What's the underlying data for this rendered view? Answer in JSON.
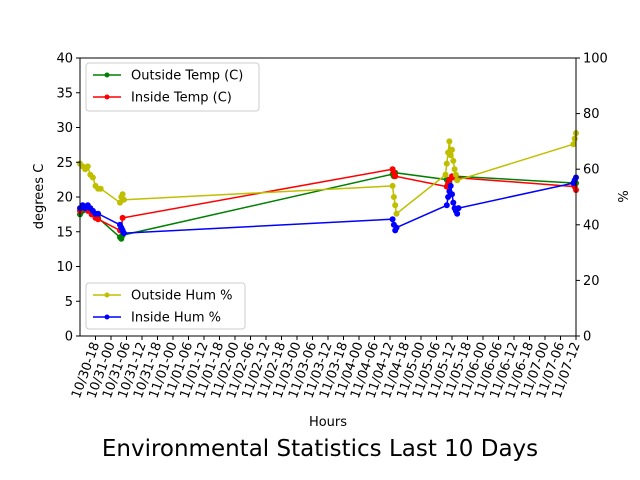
{
  "chart_data": {
    "type": "line",
    "title": "Environmental Statistics Last 10 Days",
    "xlabel": "Hours",
    "ylabel": "degrees C",
    "y2label": "%",
    "xlim": [
      "2018-10-30 12:00",
      "2018-11-07 12:00"
    ],
    "ylim": [
      0,
      40
    ],
    "y2lim": [
      0,
      100
    ],
    "x_tick_labels": [
      "10/30-18",
      "10/31-00",
      "10/31-06",
      "10/31-12",
      "10/31-18",
      "11/01-00",
      "11/01-06",
      "11/01-12",
      "11/01-18",
      "11/02-00",
      "11/02-06",
      "11/02-12",
      "11/02-18",
      "11/03-00",
      "11/03-06",
      "11/03-12",
      "11/03-18",
      "11/04-00",
      "11/04-06",
      "11/04-12",
      "11/04-18",
      "11/05-00",
      "11/05-06",
      "11/05-12",
      "11/05-18",
      "11/06-00",
      "11/06-06",
      "11/06-12",
      "11/06-18",
      "11/07-00",
      "11/07-06",
      "11/07-12"
    ],
    "y_ticks": [
      0,
      5,
      10,
      15,
      20,
      25,
      30,
      35,
      40
    ],
    "y2_ticks": [
      0,
      20,
      40,
      60,
      80,
      100
    ],
    "grid": false,
    "legends": [
      {
        "placement": "upper-left",
        "entries": [
          "Outside Temp (C)",
          "Inside Temp (C)"
        ]
      },
      {
        "placement": "lower-left",
        "entries": [
          "Outside Hum %",
          "Inside Hum %"
        ]
      }
    ],
    "series": [
      {
        "name": "Outside Temp (C)",
        "axis": "left",
        "color": "#008000",
        "points": [
          [
            "2018-10-30 12:00",
            17.5
          ],
          [
            "2018-10-30 13:00",
            18.0
          ],
          [
            "2018-10-30 14:30",
            18.2
          ],
          [
            "2018-10-30 16:00",
            18.0
          ],
          [
            "2018-10-30 17:30",
            17.5
          ],
          [
            "2018-10-30 19:00",
            17.0
          ],
          [
            "2018-10-31 03:30",
            14.2
          ],
          [
            "2018-10-31 04:00",
            14.0
          ],
          [
            "2018-10-31 04:30",
            14.5
          ],
          [
            "2018-11-04 13:00",
            23.3
          ],
          [
            "2018-11-04 13:30",
            23.0
          ],
          [
            "2018-11-04 14:00",
            23.5
          ],
          [
            "2018-11-05 10:00",
            22.5
          ],
          [
            "2018-11-05 11:00",
            22.2
          ],
          [
            "2018-11-05 12:00",
            22.8
          ],
          [
            "2018-11-05 13:30",
            23.0
          ],
          [
            "2018-11-07 12:00",
            22.0
          ]
        ]
      },
      {
        "name": "Inside Temp (C)",
        "axis": "left",
        "color": "#ff0000",
        "points": [
          [
            "2018-10-30 12:00",
            18.0
          ],
          [
            "2018-10-30 13:30",
            18.5
          ],
          [
            "2018-10-30 15:00",
            18.0
          ],
          [
            "2018-10-30 16:30",
            17.5
          ],
          [
            "2018-10-30 18:00",
            17.0
          ],
          [
            "2018-10-30 19:00",
            16.8
          ],
          [
            "2018-10-31 03:30",
            15.2
          ],
          [
            "2018-10-31 04:00",
            15.5
          ],
          [
            "2018-10-31 04:30",
            17.0
          ],
          [
            "2018-11-04 13:00",
            24.0
          ],
          [
            "2018-11-04 13:30",
            23.5
          ],
          [
            "2018-11-04 14:00",
            23.0
          ],
          [
            "2018-11-05 10:00",
            21.5
          ],
          [
            "2018-11-05 10:30",
            22.0
          ],
          [
            "2018-11-05 11:00",
            22.5
          ],
          [
            "2018-11-05 12:00",
            23.0
          ],
          [
            "2018-11-05 13:00",
            22.8
          ],
          [
            "2018-11-07 11:30",
            21.5
          ],
          [
            "2018-11-07 12:00",
            21.0
          ]
        ]
      },
      {
        "name": "Outside Hum %",
        "axis": "right",
        "color": "#bfbf00",
        "points": [
          [
            "2018-10-30 12:00",
            62
          ],
          [
            "2018-10-30 13:00",
            61
          ],
          [
            "2018-10-30 14:00",
            60
          ],
          [
            "2018-10-30 15:00",
            61
          ],
          [
            "2018-10-30 16:00",
            58
          ],
          [
            "2018-10-30 17:00",
            57
          ],
          [
            "2018-10-30 18:00",
            54
          ],
          [
            "2018-10-30 19:00",
            53
          ],
          [
            "2018-10-30 20:00",
            53
          ],
          [
            "2018-10-31 03:30",
            48
          ],
          [
            "2018-10-31 04:00",
            50
          ],
          [
            "2018-10-31 04:30",
            51
          ],
          [
            "2018-10-31 05:00",
            49
          ],
          [
            "2018-11-04 13:00",
            54
          ],
          [
            "2018-11-04 13:30",
            50
          ],
          [
            "2018-11-04 14:00",
            47
          ],
          [
            "2018-11-04 14:30",
            44
          ],
          [
            "2018-11-05 09:30",
            58
          ],
          [
            "2018-11-05 10:00",
            62
          ],
          [
            "2018-11-05 10:30",
            66
          ],
          [
            "2018-11-05 11:00",
            70
          ],
          [
            "2018-11-05 11:30",
            65
          ],
          [
            "2018-11-05 12:00",
            67
          ],
          [
            "2018-11-05 12:30",
            63
          ],
          [
            "2018-11-05 13:00",
            60
          ],
          [
            "2018-11-05 13:30",
            58
          ],
          [
            "2018-11-05 14:00",
            56
          ],
          [
            "2018-11-07 11:00",
            69
          ],
          [
            "2018-11-07 11:30",
            71
          ],
          [
            "2018-11-07 12:00",
            73
          ]
        ]
      },
      {
        "name": "Inside Hum %",
        "axis": "right",
        "color": "#0000ff",
        "points": [
          [
            "2018-10-30 12:00",
            46
          ],
          [
            "2018-10-30 13:00",
            47
          ],
          [
            "2018-10-30 14:00",
            46
          ],
          [
            "2018-10-30 15:00",
            47
          ],
          [
            "2018-10-30 16:00",
            46
          ],
          [
            "2018-10-30 17:00",
            45
          ],
          [
            "2018-10-30 18:00",
            44
          ],
          [
            "2018-10-30 19:00",
            44
          ],
          [
            "2018-10-31 03:30",
            40
          ],
          [
            "2018-10-31 04:00",
            39
          ],
          [
            "2018-10-31 04:30",
            38
          ],
          [
            "2018-10-31 05:00",
            37
          ],
          [
            "2018-11-04 13:00",
            42
          ],
          [
            "2018-11-04 13:30",
            40
          ],
          [
            "2018-11-04 14:00",
            38
          ],
          [
            "2018-11-04 14:30",
            39
          ],
          [
            "2018-11-05 10:00",
            47
          ],
          [
            "2018-11-05 10:30",
            50
          ],
          [
            "2018-11-05 11:00",
            52
          ],
          [
            "2018-11-05 11:30",
            54
          ],
          [
            "2018-11-05 12:00",
            51
          ],
          [
            "2018-11-05 12:30",
            48
          ],
          [
            "2018-11-05 13:00",
            46
          ],
          [
            "2018-11-05 13:30",
            45
          ],
          [
            "2018-11-05 14:00",
            44
          ],
          [
            "2018-11-05 14:30",
            46
          ],
          [
            "2018-11-07 11:00",
            55
          ],
          [
            "2018-11-07 11:30",
            56
          ],
          [
            "2018-11-07 12:00",
            57
          ]
        ]
      }
    ]
  }
}
